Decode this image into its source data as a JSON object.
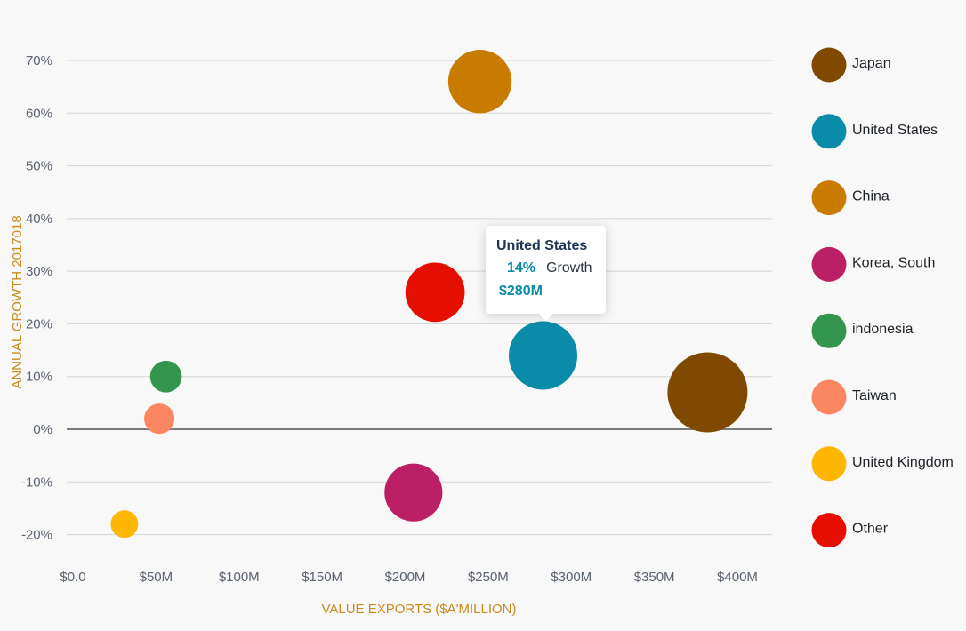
{
  "chart_data": {
    "type": "scatter",
    "subtype": "bubble",
    "title": "",
    "xlabel": "VALUE EXPORTS ($A'MILLION)",
    "ylabel": "ANNUAL GROWTH 2017018",
    "xlim": [
      0,
      420
    ],
    "ylim": [
      -25,
      75
    ],
    "x_ticks": [
      {
        "value": 0,
        "label": "$0.0"
      },
      {
        "value": 50,
        "label": "$50M"
      },
      {
        "value": 100,
        "label": "$100M"
      },
      {
        "value": 150,
        "label": "$150M"
      },
      {
        "value": 200,
        "label": "$200M"
      },
      {
        "value": 250,
        "label": "$250M"
      },
      {
        "value": 300,
        "label": "$300M"
      },
      {
        "value": 350,
        "label": "$350M"
      },
      {
        "value": 400,
        "label": "$400M"
      }
    ],
    "y_ticks": [
      {
        "value": 70,
        "label": "70%"
      },
      {
        "value": 60,
        "label": "60%"
      },
      {
        "value": 50,
        "label": "50%"
      },
      {
        "value": 40,
        "label": "40%"
      },
      {
        "value": 30,
        "label": "30%"
      },
      {
        "value": 20,
        "label": "20%"
      },
      {
        "value": 10,
        "label": "10%"
      },
      {
        "value": 0,
        "label": "0%"
      },
      {
        "value": -10,
        "label": "-10%"
      },
      {
        "value": -20,
        "label": "-20%"
      }
    ],
    "grid": true,
    "legend_position": "right",
    "series": [
      {
        "name": "Japan",
        "x": 382,
        "y": 7,
        "size": 382,
        "color": "#7f4a00"
      },
      {
        "name": "United States",
        "x": 283,
        "y": 14,
        "size": 280,
        "color": "#0a8ba8"
      },
      {
        "name": "China",
        "x": 245,
        "y": 66,
        "size": 240,
        "color": "#c97b00"
      },
      {
        "name": "Korea, South",
        "x": 205,
        "y": -12,
        "size": 200,
        "color": "#bb1f64"
      },
      {
        "name": "indonesia",
        "x": 56,
        "y": 10,
        "size": 60,
        "color": "#33944d"
      },
      {
        "name": "Taiwan",
        "x": 52,
        "y": 2,
        "size": 55,
        "color": "#fc8562"
      },
      {
        "name": "United Kingdom",
        "x": 31,
        "y": -18,
        "size": 45,
        "color": "#fdb601"
      },
      {
        "name": "Other",
        "x": 218,
        "y": 26,
        "size": 210,
        "color": "#e40f00"
      }
    ],
    "tooltip": {
      "series": "United States",
      "title": "United States",
      "growth_value": "14%",
      "growth_label": "Growth",
      "value": "$280M"
    }
  }
}
